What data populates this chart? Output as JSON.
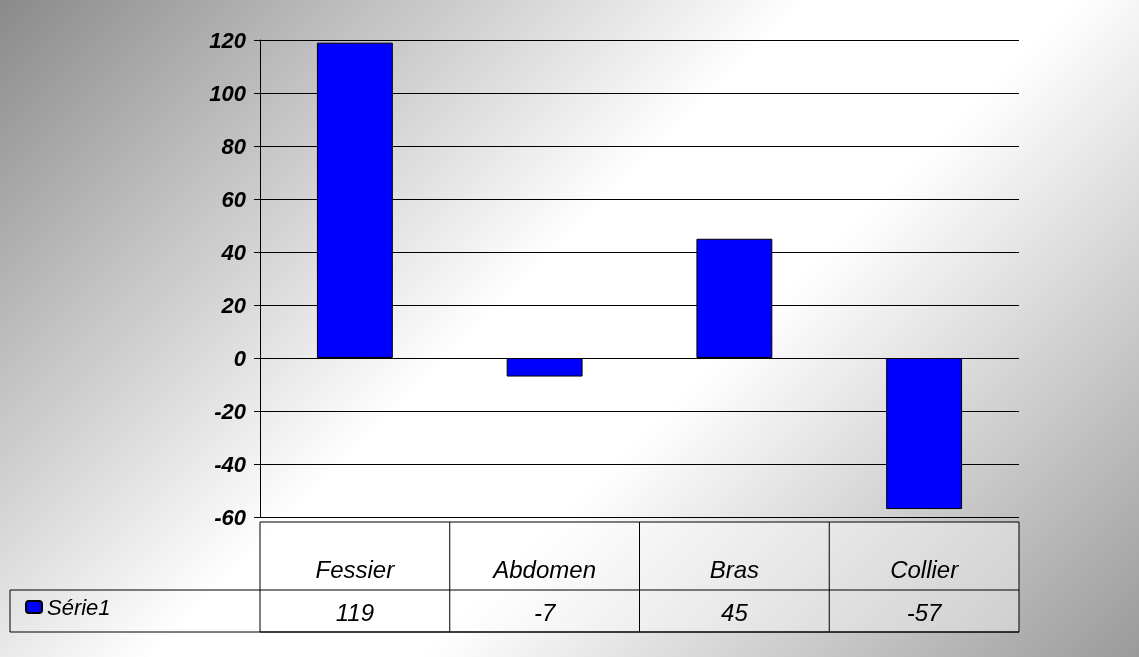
{
  "chart_data": {
    "type": "bar",
    "categories": [
      "Fessier",
      "Abdomen",
      "Bras",
      "Collier"
    ],
    "series": [
      {
        "name": "Série1",
        "color": "#0000ff",
        "values": [
          119,
          -7,
          45,
          -57
        ]
      }
    ],
    "ylim": [
      -60,
      120
    ],
    "yticks": [
      -60,
      -40,
      -20,
      0,
      20,
      40,
      60,
      80,
      100,
      120
    ],
    "grid": "y",
    "legend": "bottom left",
    "data_labels": true
  }
}
